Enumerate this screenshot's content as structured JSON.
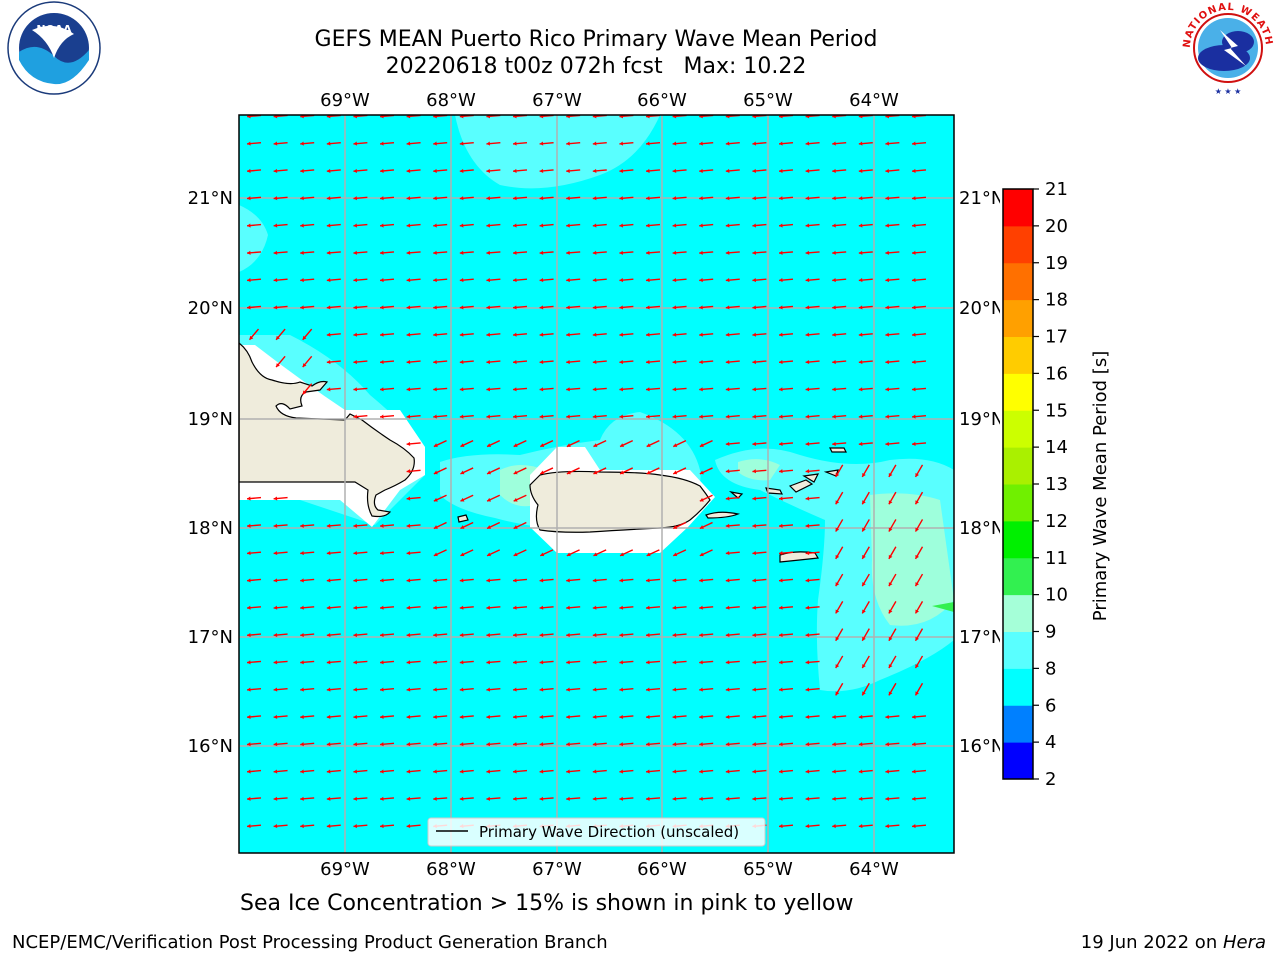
{
  "header": {
    "title_line1": "GEFS MEAN Puerto Rico Primary Wave Mean Period",
    "title_line2": "20220618 t00z 072h fcst   Max: 10.22"
  },
  "logos": {
    "left": "NOAA",
    "right": "NATIONAL WEATHER SERVICE"
  },
  "map": {
    "lon_labels": [
      "69°W",
      "68°W",
      "67°W",
      "66°W",
      "65°W",
      "64°W"
    ],
    "lat_labels": [
      "21°N",
      "20°N",
      "19°N",
      "18°N",
      "17°N",
      "16°N"
    ],
    "legend_label": "Primary Wave Direction (unscaled)",
    "ocean_color": "#00ffff",
    "land_color": "#efecdc",
    "arrow_color": "#ff0000",
    "gridline_color": "#b0b0b0"
  },
  "colorbar": {
    "label": "Primary Wave Mean Period [s]",
    "ticks": [
      "2",
      "4",
      "6",
      "8",
      "9",
      "10",
      "11",
      "12",
      "13",
      "14",
      "15",
      "16",
      "17",
      "18",
      "19",
      "20",
      "21"
    ],
    "colors": [
      "#0000ff",
      "#0080ff",
      "#00ffff",
      "#59ffff",
      "#a5ffd8",
      "#32f050",
      "#00f000",
      "#70f000",
      "#aaf000",
      "#ccff00",
      "#ffff00",
      "#ffcc00",
      "#ffa000",
      "#ff7000",
      "#ff4000",
      "#ff0000"
    ]
  },
  "footer": {
    "subtitle": "Sea Ice Concentration > 15% is shown in pink to yellow",
    "left": "NCEP/EMC/Verification Post Processing Product Generation Branch",
    "right_prefix": "19 Jun 2022 on ",
    "right_system": "Hera"
  }
}
